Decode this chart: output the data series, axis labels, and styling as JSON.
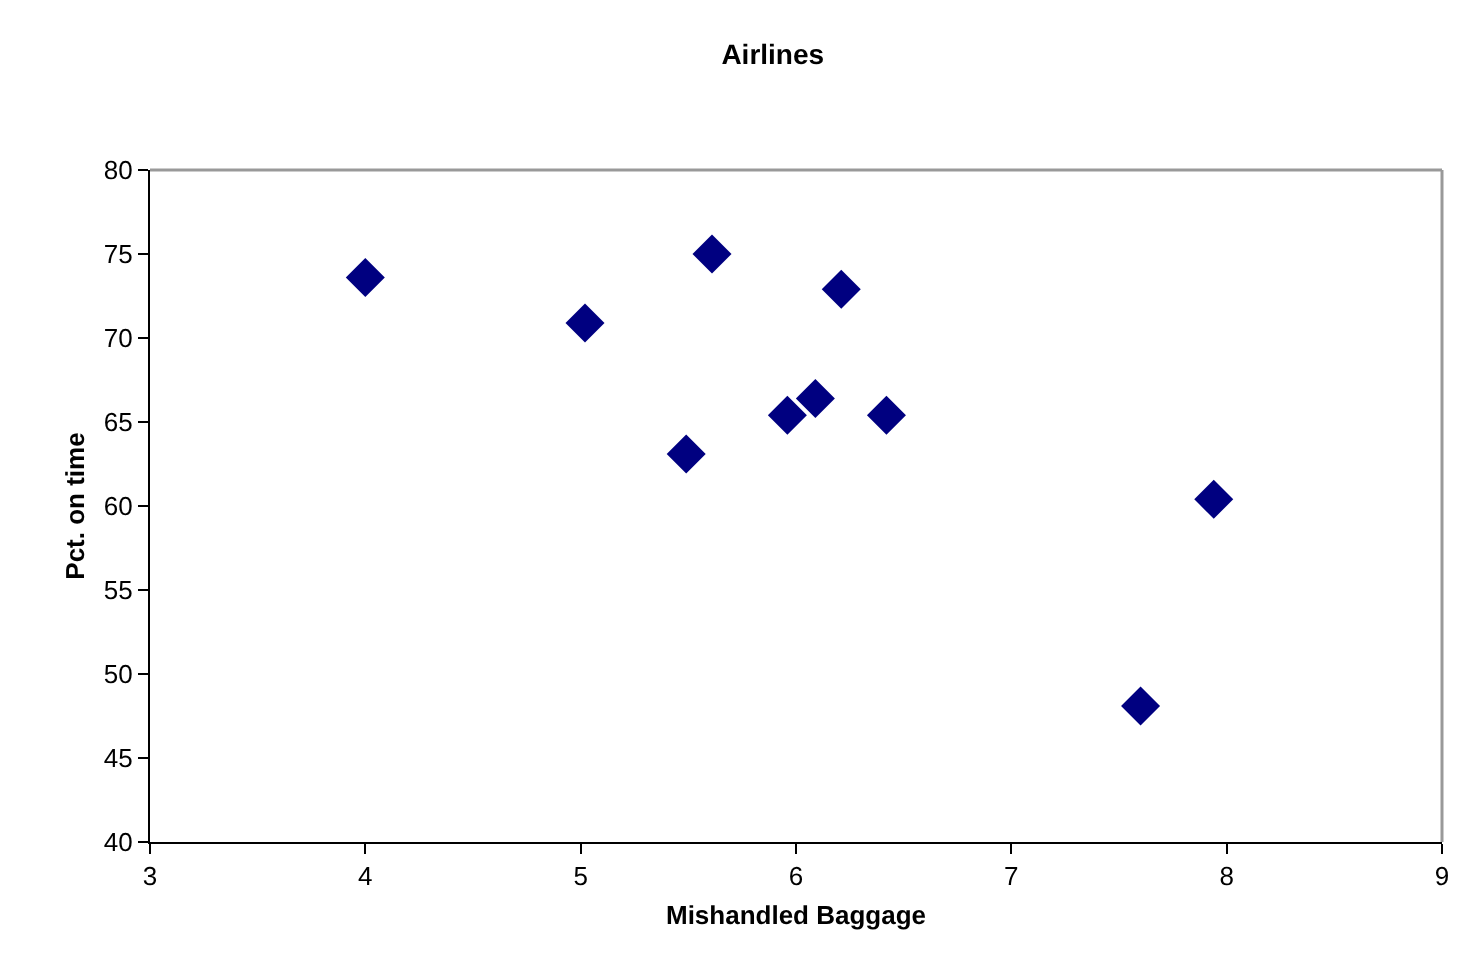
{
  "chart_data": {
    "type": "scatter",
    "title": "Airlines",
    "xlabel": "Mishandled Baggage",
    "ylabel": "Pct. on time",
    "x": [
      4.0,
      5.02,
      5.61,
      5.49,
      5.96,
      6.09,
      6.21,
      6.42,
      7.94,
      7.6
    ],
    "series": [
      {
        "color": "#000080",
        "values": [
          73.6,
          70.9,
          75.0,
          63.1,
          65.4,
          66.4,
          72.9,
          65.4,
          60.4,
          48.1
        ]
      }
    ],
    "xlim": [
      3,
      9
    ],
    "xticks": [
      3,
      4,
      5,
      6,
      7,
      8,
      9
    ],
    "ylim": [
      40,
      80
    ],
    "yticks": [
      40,
      45,
      50,
      55,
      60,
      65,
      70,
      75,
      80
    ],
    "marker": "diamond"
  }
}
